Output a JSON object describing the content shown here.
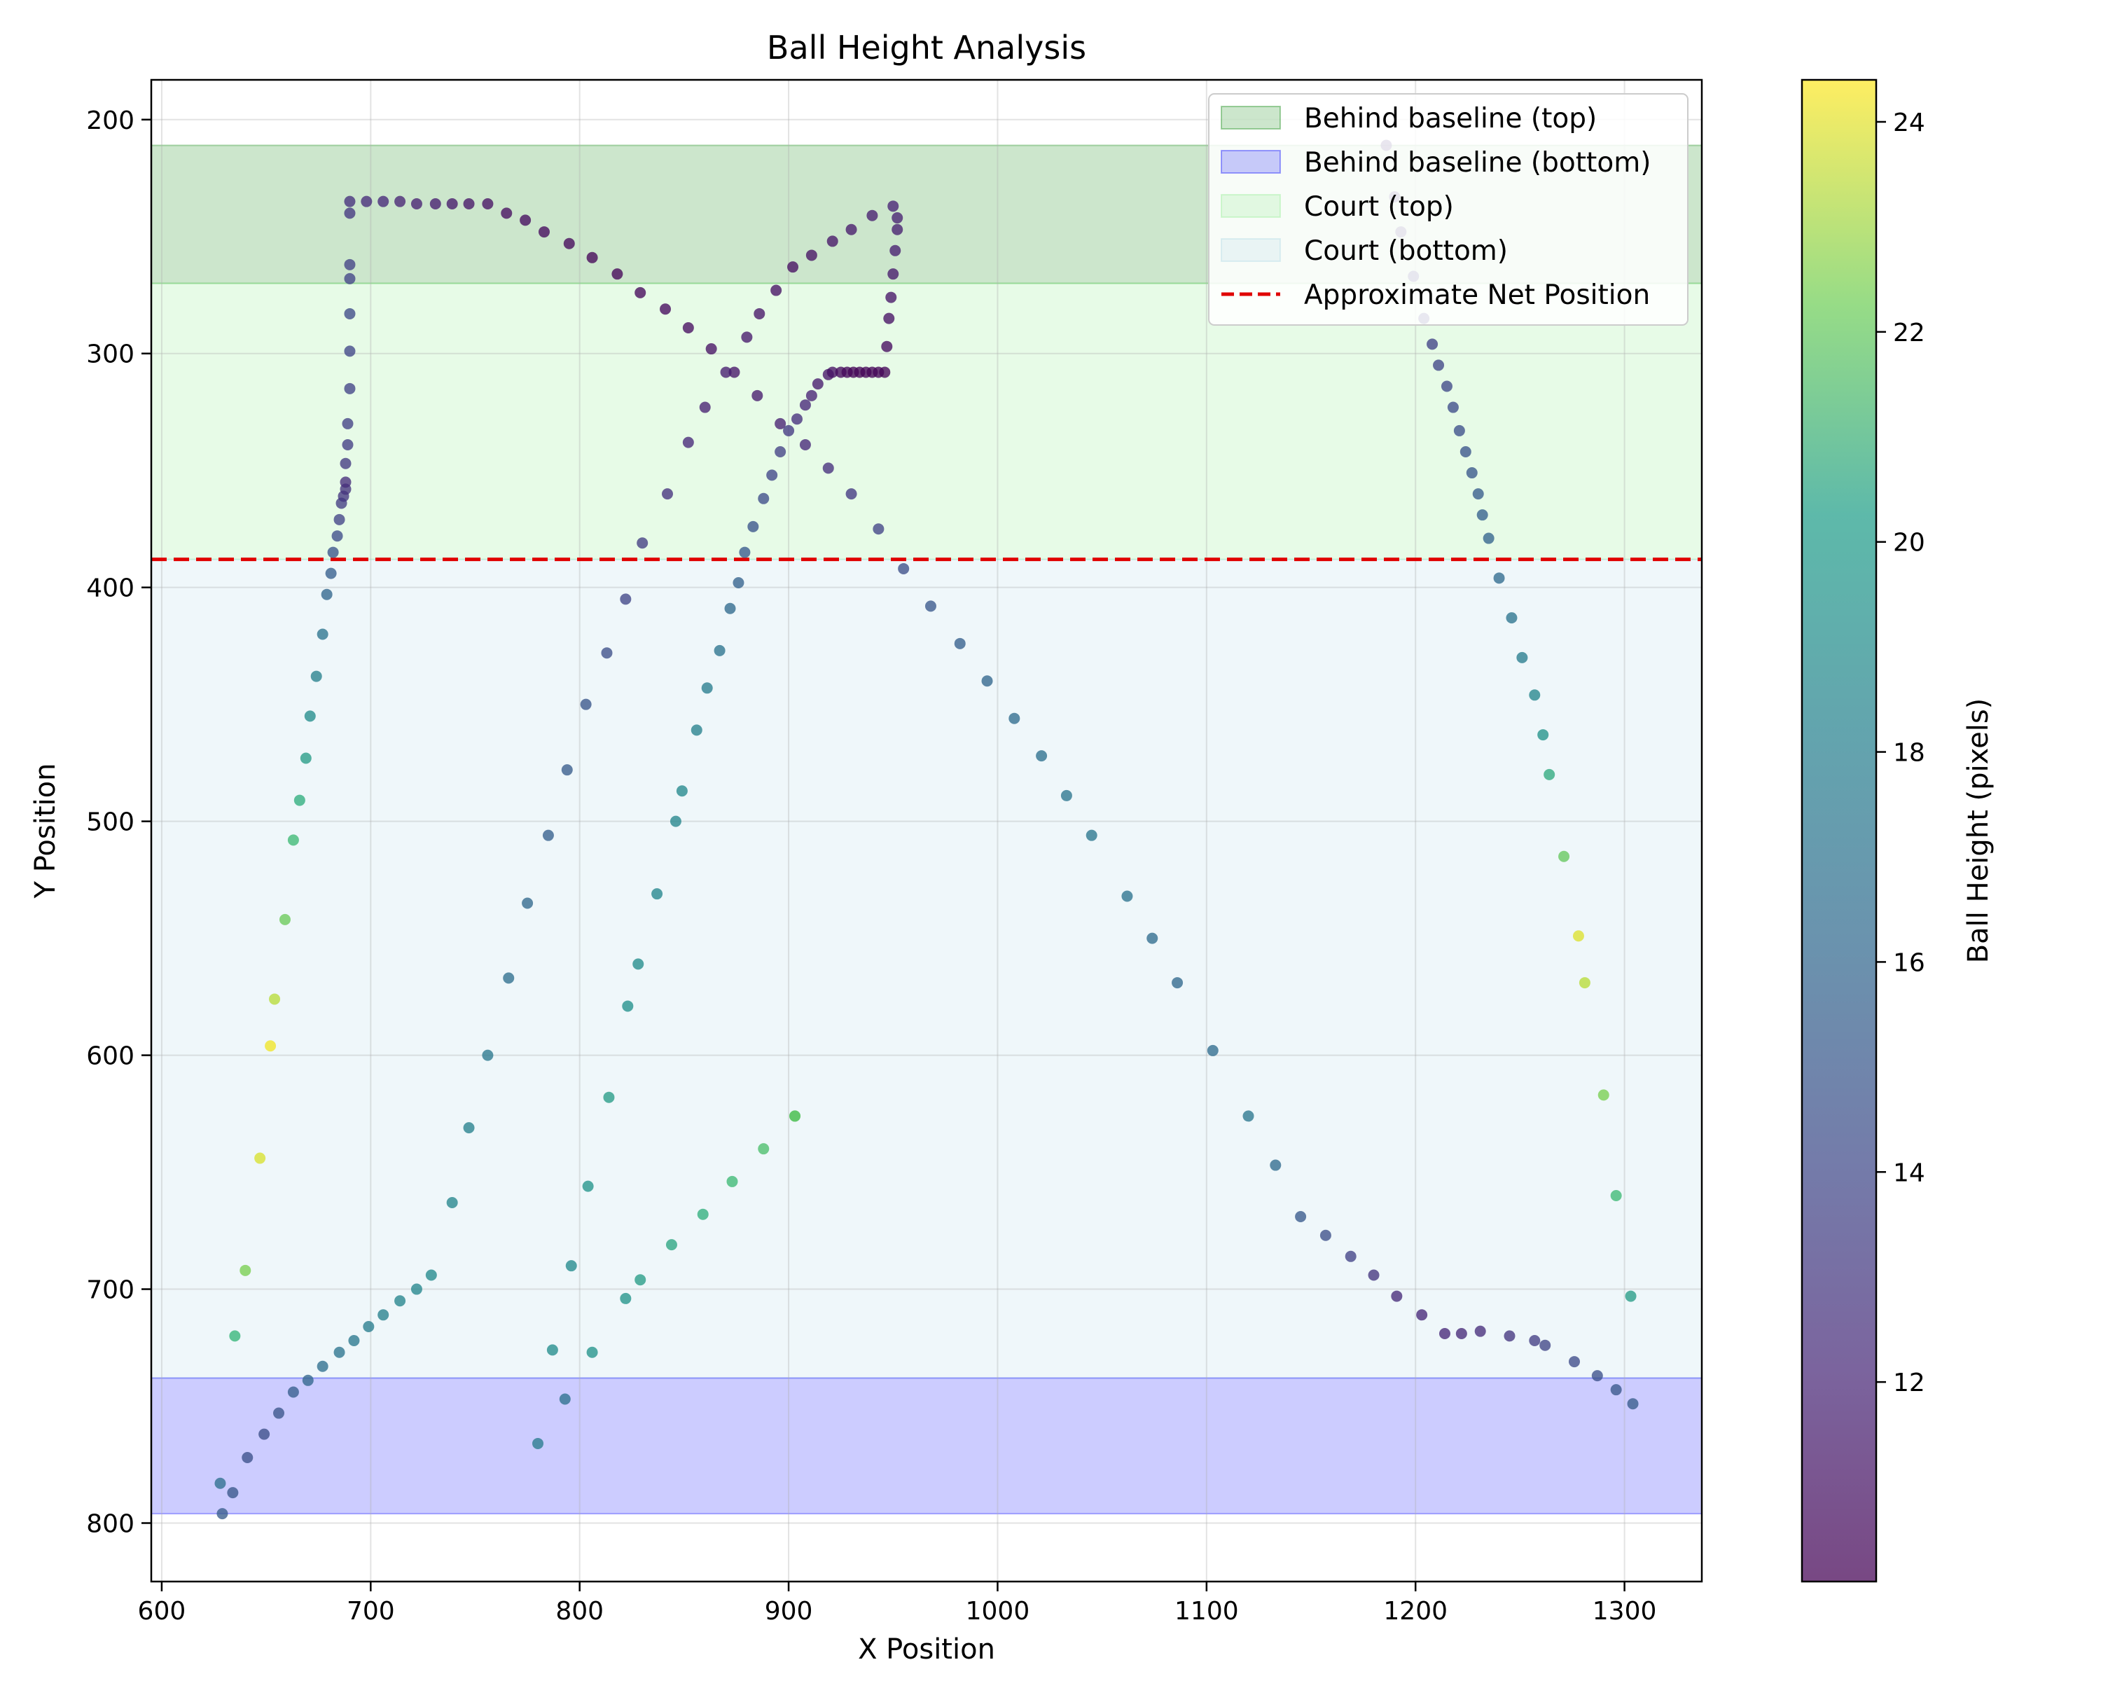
{
  "chart_data": {
    "type": "scatter",
    "title": "Ball Height Analysis",
    "xlabel": "X Position",
    "ylabel": "Y Position",
    "xlim": [
      595,
      1337
    ],
    "ylim": [
      825,
      183
    ],
    "y_inverted": true,
    "grid": true,
    "x_ticks": [
      "600",
      "700",
      "800",
      "900",
      "1000",
      "1100",
      "1200",
      "1300"
    ],
    "x_tick_values": [
      600,
      700,
      800,
      900,
      1000,
      1100,
      1200,
      1300
    ],
    "y_ticks": [
      "200",
      "300",
      "400",
      "500",
      "600",
      "700",
      "800"
    ],
    "y_tick_values": [
      200,
      300,
      400,
      500,
      600,
      700,
      800
    ],
    "colorbar": {
      "label": "Ball Height (pixels)",
      "colormap": "viridis",
      "range": [
        10.1,
        24.4
      ],
      "ticks": [
        "12",
        "14",
        "16",
        "18",
        "20",
        "22",
        "24"
      ],
      "tick_values": [
        12,
        14,
        16,
        18,
        20,
        22,
        24
      ]
    },
    "regions": [
      {
        "name": "Behind baseline (top)",
        "y_from": 211,
        "y_to": 270,
        "color": "#008000",
        "opacity": 0.2
      },
      {
        "name": "Court (top)",
        "y_from": 270,
        "y_to": 388,
        "color": "#90ee90",
        "opacity": 0.22
      },
      {
        "name": "Court (bottom)",
        "y_from": 388,
        "y_to": 738,
        "color": "#add8e6",
        "opacity": 0.2
      },
      {
        "name": "Behind baseline (bottom)",
        "y_from": 738,
        "y_to": 796,
        "color": "#0000ff",
        "opacity": 0.2
      }
    ],
    "net_line": {
      "name": "Approximate Net Position",
      "y": 388,
      "color": "#e00000"
    },
    "legend": {
      "placement": "top-right",
      "entries": [
        "Behind baseline (top)",
        "Behind baseline (bottom)",
        "Court (top)",
        "Court (bottom)",
        "Approximate Net Position"
      ]
    },
    "points": [
      [
        628,
        783,
        16.7
      ],
      [
        629,
        796,
        15.3
      ],
      [
        634,
        787,
        15.0
      ],
      [
        641,
        772,
        14.6
      ],
      [
        649,
        762,
        14.4
      ],
      [
        656,
        753,
        14.8
      ],
      [
        663,
        744,
        15.4
      ],
      [
        670,
        739,
        16.0
      ],
      [
        677,
        733,
        16.6
      ],
      [
        685,
        727,
        17.0
      ],
      [
        692,
        722,
        17.3
      ],
      [
        699,
        716,
        17.6
      ],
      [
        706,
        711,
        17.9
      ],
      [
        714,
        705,
        18.2
      ],
      [
        722,
        700,
        18.4
      ],
      [
        729,
        694,
        18.6
      ],
      [
        635,
        720,
        20.8
      ],
      [
        640,
        692,
        22.2
      ],
      [
        647,
        644,
        23.8
      ],
      [
        652,
        596,
        24.2
      ],
      [
        654,
        576,
        23.3
      ],
      [
        659,
        542,
        21.9
      ],
      [
        663,
        508,
        21.0
      ],
      [
        666,
        491,
        20.4
      ],
      [
        669,
        473,
        19.6
      ],
      [
        671,
        455,
        18.8
      ],
      [
        674,
        438,
        17.9
      ],
      [
        677,
        420,
        17.0
      ],
      [
        679,
        403,
        16.1
      ],
      [
        681,
        394,
        15.5
      ],
      [
        682,
        385,
        14.8
      ],
      [
        684,
        378,
        14.3
      ],
      [
        685,
        371,
        13.7
      ],
      [
        686,
        364,
        13.3
      ],
      [
        687,
        361,
        13.0
      ],
      [
        688,
        358,
        12.8
      ],
      [
        688,
        355,
        12.5
      ],
      [
        688,
        347,
        13.2
      ],
      [
        689,
        339,
        13.4
      ],
      [
        689,
        330,
        13.5
      ],
      [
        690,
        315,
        13.7
      ],
      [
        690,
        299,
        13.9
      ],
      [
        690,
        283,
        14.1
      ],
      [
        690,
        268,
        13.7
      ],
      [
        690,
        262,
        13.5
      ],
      [
        690,
        240,
        13.0
      ],
      [
        690,
        235,
        12.6
      ],
      [
        698,
        235,
        12.4
      ],
      [
        706,
        235,
        12.2
      ],
      [
        714,
        235,
        12.0
      ],
      [
        722,
        236,
        11.8
      ],
      [
        731,
        236,
        11.6
      ],
      [
        739,
        236,
        11.4
      ],
      [
        747,
        236,
        11.2
      ],
      [
        756,
        236,
        11.0
      ],
      [
        765,
        240,
        10.8
      ],
      [
        774,
        243,
        10.7
      ],
      [
        783,
        248,
        10.6
      ],
      [
        795,
        253,
        10.5
      ],
      [
        806,
        259,
        10.4
      ],
      [
        818,
        266,
        10.4
      ],
      [
        829,
        274,
        10.5
      ],
      [
        841,
        281,
        10.6
      ],
      [
        852,
        289,
        10.8
      ],
      [
        863,
        298,
        11.0
      ],
      [
        874,
        308,
        11.2
      ],
      [
        885,
        318,
        11.5
      ],
      [
        896,
        330,
        11.8
      ],
      [
        908,
        339,
        12.2
      ],
      [
        919,
        349,
        12.6
      ],
      [
        930,
        360,
        13.1
      ],
      [
        943,
        375,
        13.7
      ],
      [
        955,
        392,
        14.4
      ],
      [
        968,
        408,
        15.1
      ],
      [
        982,
        424,
        15.6
      ],
      [
        995,
        440,
        16.1
      ],
      [
        1008,
        456,
        16.5
      ],
      [
        1021,
        472,
        16.8
      ],
      [
        1033,
        489,
        17.1
      ],
      [
        1045,
        506,
        17.2
      ],
      [
        1062,
        532,
        16.9
      ],
      [
        1074,
        550,
        16.5
      ],
      [
        1086,
        569,
        16.2
      ],
      [
        1103,
        598,
        16.5
      ],
      [
        1120,
        626,
        17.2
      ],
      [
        1133,
        647,
        16.4
      ],
      [
        1145,
        669,
        15.2
      ],
      [
        1157,
        677,
        14.4
      ],
      [
        1169,
        686,
        13.6
      ],
      [
        1180,
        694,
        12.9
      ],
      [
        1191,
        703,
        12.4
      ],
      [
        1203,
        711,
        12.2
      ],
      [
        1214,
        719,
        12.2
      ],
      [
        1222,
        719,
        12.3
      ],
      [
        1231,
        718,
        12.5
      ],
      [
        1245,
        720,
        12.9
      ],
      [
        1257,
        722,
        13.4
      ],
      [
        1262,
        724,
        13.8
      ],
      [
        1276,
        731,
        14.2
      ],
      [
        1287,
        737,
        14.6
      ],
      [
        1296,
        743,
        15.0
      ],
      [
        1304,
        749,
        15.3
      ],
      [
        1186,
        211,
        12.3
      ],
      [
        1190,
        233,
        12.5
      ],
      [
        1193,
        248,
        12.8
      ],
      [
        1199,
        267,
        13.1
      ],
      [
        1204,
        285,
        13.4
      ],
      [
        1208,
        296,
        13.6
      ],
      [
        1211,
        305,
        13.8
      ],
      [
        1215,
        314,
        14.0
      ],
      [
        1218,
        323,
        14.3
      ],
      [
        1221,
        333,
        14.5
      ],
      [
        1224,
        342,
        14.8
      ],
      [
        1227,
        351,
        15.0
      ],
      [
        1230,
        360,
        15.3
      ],
      [
        1232,
        369,
        15.6
      ],
      [
        1235,
        379,
        15.9
      ],
      [
        1240,
        396,
        16.4
      ],
      [
        1246,
        413,
        17.0
      ],
      [
        1251,
        430,
        17.6
      ],
      [
        1257,
        446,
        18.3
      ],
      [
        1261,
        463,
        19.2
      ],
      [
        1264,
        480,
        20.3
      ],
      [
        1271,
        515,
        21.8
      ],
      [
        1278,
        549,
        23.9
      ],
      [
        1281,
        569,
        23.3
      ],
      [
        1290,
        617,
        22.2
      ],
      [
        1296,
        660,
        21.0
      ],
      [
        1303,
        703,
        19.6
      ],
      [
        780,
        766,
        17.5
      ],
      [
        793,
        747,
        16.8
      ],
      [
        787,
        726,
        18.8
      ],
      [
        796,
        690,
        18.6
      ],
      [
        806,
        727,
        19.2
      ],
      [
        804,
        656,
        19.3
      ],
      [
        814,
        618,
        19.6
      ],
      [
        823,
        579,
        19.1
      ],
      [
        828,
        561,
        18.8
      ],
      [
        837,
        531,
        18.4
      ],
      [
        846,
        500,
        18.3
      ],
      [
        849,
        487,
        18.5
      ],
      [
        856,
        461,
        18.0
      ],
      [
        861,
        443,
        17.6
      ],
      [
        867,
        427,
        17.0
      ],
      [
        872,
        409,
        16.3
      ],
      [
        876,
        398,
        15.8
      ],
      [
        879,
        385,
        15.2
      ],
      [
        883,
        374,
        14.8
      ],
      [
        888,
        362,
        14.3
      ],
      [
        892,
        352,
        13.9
      ],
      [
        896,
        342,
        13.5
      ],
      [
        900,
        333,
        13.1
      ],
      [
        904,
        328,
        12.6
      ],
      [
        908,
        322,
        12.2
      ],
      [
        911,
        318,
        11.9
      ],
      [
        914,
        313,
        11.5
      ],
      [
        919,
        309,
        11.2
      ],
      [
        921,
        308,
        11.0
      ],
      [
        925,
        308,
        10.6
      ],
      [
        928,
        308,
        10.5
      ],
      [
        931,
        308,
        10.4
      ],
      [
        934,
        308,
        10.4
      ],
      [
        937,
        308,
        10.4
      ],
      [
        940,
        308,
        10.4
      ],
      [
        943,
        308,
        10.4
      ],
      [
        946,
        308,
        10.4
      ],
      [
        947,
        297,
        10.7
      ],
      [
        948,
        285,
        11.0
      ],
      [
        949,
        276,
        11.2
      ],
      [
        950,
        266,
        11.4
      ],
      [
        951,
        256,
        11.6
      ],
      [
        952,
        247,
        11.7
      ],
      [
        952,
        242,
        11.8
      ],
      [
        950,
        237,
        11.9
      ],
      [
        940,
        241,
        11.7
      ],
      [
        930,
        247,
        11.4
      ],
      [
        921,
        252,
        11.2
      ],
      [
        911,
        258,
        11.0
      ],
      [
        902,
        263,
        10.9
      ],
      [
        894,
        273,
        11.0
      ],
      [
        886,
        283,
        11.2
      ],
      [
        880,
        293,
        11.4
      ],
      [
        870,
        308,
        11.6
      ],
      [
        860,
        323,
        11.8
      ],
      [
        852,
        338,
        12.2
      ],
      [
        842,
        360,
        12.7
      ],
      [
        830,
        381,
        13.3
      ],
      [
        822,
        405,
        13.9
      ],
      [
        813,
        428,
        14.4
      ],
      [
        803,
        450,
        14.9
      ],
      [
        794,
        478,
        15.3
      ],
      [
        785,
        506,
        15.6
      ],
      [
        775,
        535,
        16.2
      ],
      [
        766,
        567,
        16.7
      ],
      [
        756,
        600,
        17.3
      ],
      [
        747,
        631,
        17.9
      ],
      [
        739,
        663,
        18.3
      ],
      [
        822,
        704,
        19.3
      ],
      [
        829,
        696,
        19.6
      ],
      [
        844,
        681,
        20.0
      ],
      [
        859,
        668,
        20.5
      ],
      [
        873,
        654,
        21.0
      ],
      [
        888,
        640,
        21.3
      ],
      [
        903,
        626,
        21.6
      ],
      [
        903,
        626,
        21.6
      ]
    ]
  }
}
